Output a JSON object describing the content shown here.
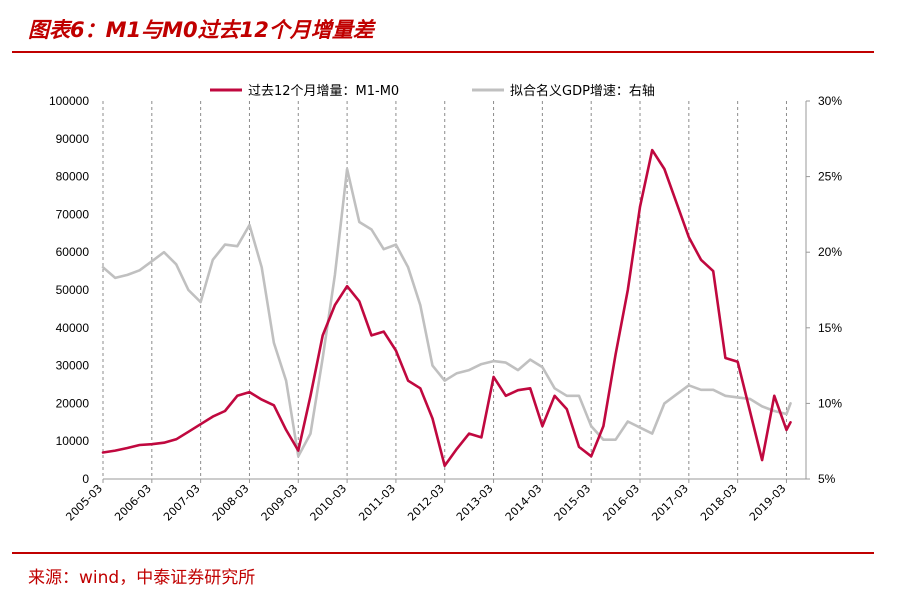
{
  "header": {
    "title": "图表6：M1与M0过去12个月增量差"
  },
  "footer": {
    "source": "来源：wind，中泰证券研究所"
  },
  "colors": {
    "accent": "#c00000",
    "series1": "#c0083f",
    "series2": "#c0c0c0"
  },
  "chart_data": {
    "type": "line",
    "title": "",
    "grid": "vertical dashed lines at each year",
    "legend_position": "top",
    "x_ticks": [
      "2005-03",
      "2006-03",
      "2007-03",
      "2008-03",
      "2009-03",
      "2010-03",
      "2011-03",
      "2012-03",
      "2013-03",
      "2014-03",
      "2015-03",
      "2016-03",
      "2017-03",
      "2018-03",
      "2019-03"
    ],
    "y_left": {
      "ylim": [
        0,
        100000
      ],
      "ticks": [
        "0",
        "10000",
        "20000",
        "30000",
        "40000",
        "50000",
        "60000",
        "70000",
        "80000",
        "90000",
        "100000"
      ]
    },
    "y_right": {
      "ylim": [
        5,
        30
      ],
      "ticks": [
        "5%",
        "10%",
        "15%",
        "20%",
        "25%",
        "30%"
      ]
    },
    "series": [
      {
        "name": "过去12个月增量：M1-M0",
        "axis": "left",
        "points": [
          [
            "2005-03",
            7000
          ],
          [
            "2005-06",
            7500
          ],
          [
            "2005-09",
            8200
          ],
          [
            "2005-12",
            9000
          ],
          [
            "2006-03",
            9200
          ],
          [
            "2006-06",
            9600
          ],
          [
            "2006-09",
            10500
          ],
          [
            "2006-12",
            12500
          ],
          [
            "2007-03",
            14500
          ],
          [
            "2007-06",
            16500
          ],
          [
            "2007-09",
            18000
          ],
          [
            "2007-12",
            22000
          ],
          [
            "2008-03",
            23000
          ],
          [
            "2008-06",
            21000
          ],
          [
            "2008-09",
            19500
          ],
          [
            "2008-12",
            13000
          ],
          [
            "2009-03",
            7500
          ],
          [
            "2009-06",
            22000
          ],
          [
            "2009-09",
            38000
          ],
          [
            "2009-12",
            46000
          ],
          [
            "2010-03",
            51000
          ],
          [
            "2010-06",
            47000
          ],
          [
            "2010-09",
            38000
          ],
          [
            "2010-12",
            39000
          ],
          [
            "2011-03",
            34000
          ],
          [
            "2011-06",
            26000
          ],
          [
            "2011-09",
            24000
          ],
          [
            "2011-12",
            16000
          ],
          [
            "2012-03",
            3500
          ],
          [
            "2012-06",
            8000
          ],
          [
            "2012-09",
            12000
          ],
          [
            "2012-12",
            11000
          ],
          [
            "2013-03",
            27000
          ],
          [
            "2013-06",
            22000
          ],
          [
            "2013-09",
            23500
          ],
          [
            "2013-12",
            24000
          ],
          [
            "2014-03",
            14000
          ],
          [
            "2014-06",
            22000
          ],
          [
            "2014-09",
            18500
          ],
          [
            "2014-12",
            8500
          ],
          [
            "2015-03",
            6000
          ],
          [
            "2015-06",
            14000
          ],
          [
            "2015-09",
            33000
          ],
          [
            "2015-12",
            50000
          ],
          [
            "2016-03",
            72000
          ],
          [
            "2016-06",
            87000
          ],
          [
            "2016-09",
            82000
          ],
          [
            "2016-12",
            73000
          ],
          [
            "2017-03",
            64000
          ],
          [
            "2017-06",
            58000
          ],
          [
            "2017-09",
            55000
          ],
          [
            "2017-12",
            32000
          ],
          [
            "2018-03",
            31000
          ],
          [
            "2018-06",
            18000
          ],
          [
            "2018-09",
            5000
          ],
          [
            "2018-12",
            22000
          ],
          [
            "2019-03",
            13000
          ],
          [
            "2019-04",
            15000
          ]
        ]
      },
      {
        "name": "拟合名义GDP增速：右轴",
        "axis": "right",
        "points": [
          [
            "2005-03",
            19.0
          ],
          [
            "2005-06",
            18.3
          ],
          [
            "2005-09",
            18.5
          ],
          [
            "2005-12",
            18.8
          ],
          [
            "2006-03",
            19.4
          ],
          [
            "2006-06",
            20.0
          ],
          [
            "2006-09",
            19.2
          ],
          [
            "2006-12",
            17.5
          ],
          [
            "2007-03",
            16.7
          ],
          [
            "2007-06",
            19.5
          ],
          [
            "2007-09",
            20.5
          ],
          [
            "2007-12",
            20.4
          ],
          [
            "2008-03",
            21.8
          ],
          [
            "2008-06",
            19.0
          ],
          [
            "2008-09",
            14.0
          ],
          [
            "2008-12",
            11.5
          ],
          [
            "2009-03",
            6.5
          ],
          [
            "2009-06",
            8.0
          ],
          [
            "2009-09",
            13.0
          ],
          [
            "2009-12",
            18.5
          ],
          [
            "2010-03",
            25.5
          ],
          [
            "2010-06",
            22.0
          ],
          [
            "2010-09",
            21.5
          ],
          [
            "2010-12",
            20.2
          ],
          [
            "2011-03",
            20.5
          ],
          [
            "2011-06",
            19.0
          ],
          [
            "2011-09",
            16.5
          ],
          [
            "2011-12",
            12.5
          ],
          [
            "2012-03",
            11.5
          ],
          [
            "2012-06",
            12.0
          ],
          [
            "2012-09",
            12.2
          ],
          [
            "2012-12",
            12.6
          ],
          [
            "2013-03",
            12.8
          ],
          [
            "2013-06",
            12.7
          ],
          [
            "2013-09",
            12.2
          ],
          [
            "2013-12",
            12.9
          ],
          [
            "2014-03",
            12.4
          ],
          [
            "2014-06",
            11.0
          ],
          [
            "2014-09",
            10.5
          ],
          [
            "2014-12",
            10.5
          ],
          [
            "2015-03",
            8.5
          ],
          [
            "2015-06",
            7.6
          ],
          [
            "2015-09",
            7.6
          ],
          [
            "2015-12",
            8.8
          ],
          [
            "2016-03",
            8.4
          ],
          [
            "2016-06",
            8.0
          ],
          [
            "2016-09",
            10.0
          ],
          [
            "2016-12",
            10.6
          ],
          [
            "2017-03",
            11.2
          ],
          [
            "2017-06",
            10.9
          ],
          [
            "2017-09",
            10.9
          ],
          [
            "2017-12",
            10.5
          ],
          [
            "2018-03",
            10.4
          ],
          [
            "2018-06",
            10.3
          ],
          [
            "2018-09",
            9.8
          ],
          [
            "2018-12",
            9.5
          ],
          [
            "2019-03",
            9.3
          ],
          [
            "2019-04",
            10.0
          ]
        ]
      }
    ]
  }
}
